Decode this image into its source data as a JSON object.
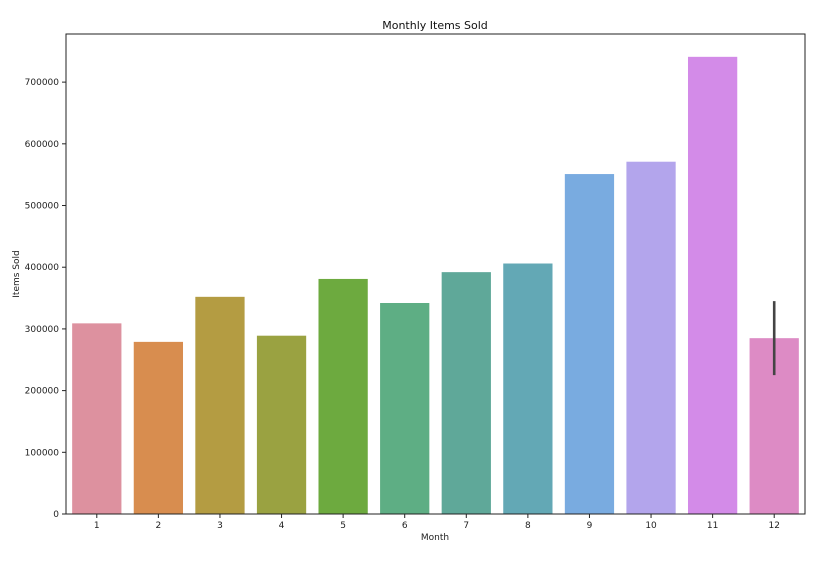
{
  "chart_data": {
    "type": "bar",
    "title": "Monthly Items Sold",
    "xlabel": "Month",
    "ylabel": "Items Sold",
    "categories": [
      "1",
      "2",
      "3",
      "4",
      "5",
      "6",
      "7",
      "8",
      "9",
      "10",
      "11",
      "12"
    ],
    "values": [
      309000,
      279000,
      352000,
      289000,
      381000,
      342000,
      392000,
      406000,
      551000,
      571000,
      741000,
      285000
    ],
    "colors": [
      "#dd919f",
      "#d88d4f",
      "#b49c42",
      "#9aa241",
      "#6daa3f",
      "#5eae84",
      "#5fa899",
      "#63a8b5",
      "#79abe0",
      "#b3a5ec",
      "#d38be8",
      "#dd8bc5"
    ],
    "error_bars": [
      null,
      null,
      null,
      null,
      null,
      null,
      null,
      null,
      null,
      null,
      null,
      [
        225000,
        345000
      ]
    ],
    "ylim": [
      0,
      778000
    ],
    "yticks": [
      0,
      100000,
      200000,
      300000,
      400000,
      500000,
      600000,
      700000
    ],
    "grid": false
  }
}
